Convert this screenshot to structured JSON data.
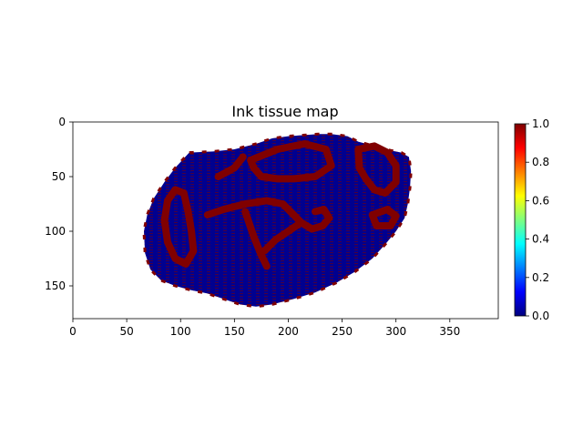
{
  "chart_data": {
    "type": "heatmap",
    "title": "Ink tissue map",
    "xlabel": "",
    "ylabel": "",
    "xlim": [
      0,
      395
    ],
    "ylim": [
      180,
      0
    ],
    "xticks": [
      0,
      50,
      100,
      150,
      200,
      250,
      300,
      350
    ],
    "yticks": [
      0,
      50,
      100,
      150
    ],
    "colorbar": {
      "colormap": "jet",
      "range": [
        0,
        1
      ],
      "ticks": [
        "0.0",
        "0.2",
        "0.4",
        "0.6",
        "0.8",
        "1.0"
      ],
      "placement": "right"
    },
    "values_present": [
      0,
      1
    ],
    "value_colors": {
      "0": "#00008f",
      "1": "#800000"
    },
    "tissue_outline": [
      [
        108,
        28
      ],
      [
        130,
        27
      ],
      [
        150,
        25
      ],
      [
        170,
        20
      ],
      [
        185,
        15
      ],
      [
        200,
        13
      ],
      [
        215,
        12
      ],
      [
        228,
        11
      ],
      [
        240,
        11
      ],
      [
        255,
        13
      ],
      [
        265,
        18
      ],
      [
        280,
        22
      ],
      [
        295,
        26
      ],
      [
        305,
        28
      ],
      [
        312,
        32
      ],
      [
        314,
        45
      ],
      [
        313,
        60
      ],
      [
        311,
        75
      ],
      [
        308,
        88
      ],
      [
        300,
        100
      ],
      [
        290,
        112
      ],
      [
        278,
        125
      ],
      [
        262,
        137
      ],
      [
        245,
        147
      ],
      [
        225,
        156
      ],
      [
        205,
        162
      ],
      [
        185,
        167
      ],
      [
        170,
        169
      ],
      [
        155,
        167
      ],
      [
        140,
        162
      ],
      [
        125,
        157
      ],
      [
        110,
        154
      ],
      [
        95,
        150
      ],
      [
        82,
        145
      ],
      [
        72,
        135
      ],
      [
        67,
        120
      ],
      [
        66,
        100
      ],
      [
        69,
        85
      ],
      [
        75,
        70
      ],
      [
        85,
        55
      ],
      [
        95,
        42
      ]
    ],
    "ink_regions": [
      {
        "value": 1,
        "path": [
          [
            95,
            62
          ],
          [
            88,
            72
          ],
          [
            85,
            90
          ],
          [
            88,
            110
          ],
          [
            95,
            125
          ],
          [
            105,
            130
          ],
          [
            112,
            118
          ],
          [
            110,
            100
          ],
          [
            107,
            82
          ],
          [
            103,
            65
          ],
          [
            95,
            62
          ]
        ]
      },
      {
        "value": 1,
        "path": [
          [
            125,
            85
          ],
          [
            140,
            80
          ],
          [
            160,
            75
          ],
          [
            180,
            72
          ],
          [
            195,
            75
          ],
          [
            205,
            85
          ],
          [
            212,
            92
          ],
          [
            222,
            98
          ],
          [
            232,
            95
          ],
          [
            238,
            88
          ],
          [
            233,
            80
          ],
          [
            225,
            82
          ]
        ]
      },
      {
        "value": 1,
        "path": [
          [
            178,
            118
          ],
          [
            188,
            108
          ],
          [
            200,
            100
          ],
          [
            212,
            92
          ]
        ]
      },
      {
        "value": 1,
        "path": [
          [
            160,
            82
          ],
          [
            168,
            105
          ],
          [
            175,
            122
          ],
          [
            180,
            132
          ]
        ]
      },
      {
        "value": 1,
        "path": [
          [
            165,
            35
          ],
          [
            190,
            25
          ],
          [
            215,
            20
          ],
          [
            235,
            25
          ],
          [
            240,
            40
          ],
          [
            225,
            50
          ],
          [
            205,
            52
          ],
          [
            190,
            52
          ],
          [
            175,
            50
          ],
          [
            168,
            42
          ],
          [
            165,
            35
          ]
        ]
      },
      {
        "value": 1,
        "path": [
          [
            265,
            25
          ],
          [
            280,
            22
          ],
          [
            292,
            28
          ],
          [
            300,
            40
          ],
          [
            300,
            55
          ],
          [
            290,
            65
          ],
          [
            280,
            62
          ],
          [
            272,
            52
          ],
          [
            266,
            42
          ],
          [
            265,
            25
          ]
        ]
      },
      {
        "value": 1,
        "path": [
          [
            278,
            85
          ],
          [
            292,
            80
          ],
          [
            300,
            86
          ],
          [
            295,
            95
          ],
          [
            282,
            95
          ],
          [
            278,
            85
          ]
        ]
      },
      {
        "value": 1,
        "path": [
          [
            135,
            50
          ],
          [
            150,
            42
          ],
          [
            158,
            32
          ]
        ]
      }
    ]
  }
}
